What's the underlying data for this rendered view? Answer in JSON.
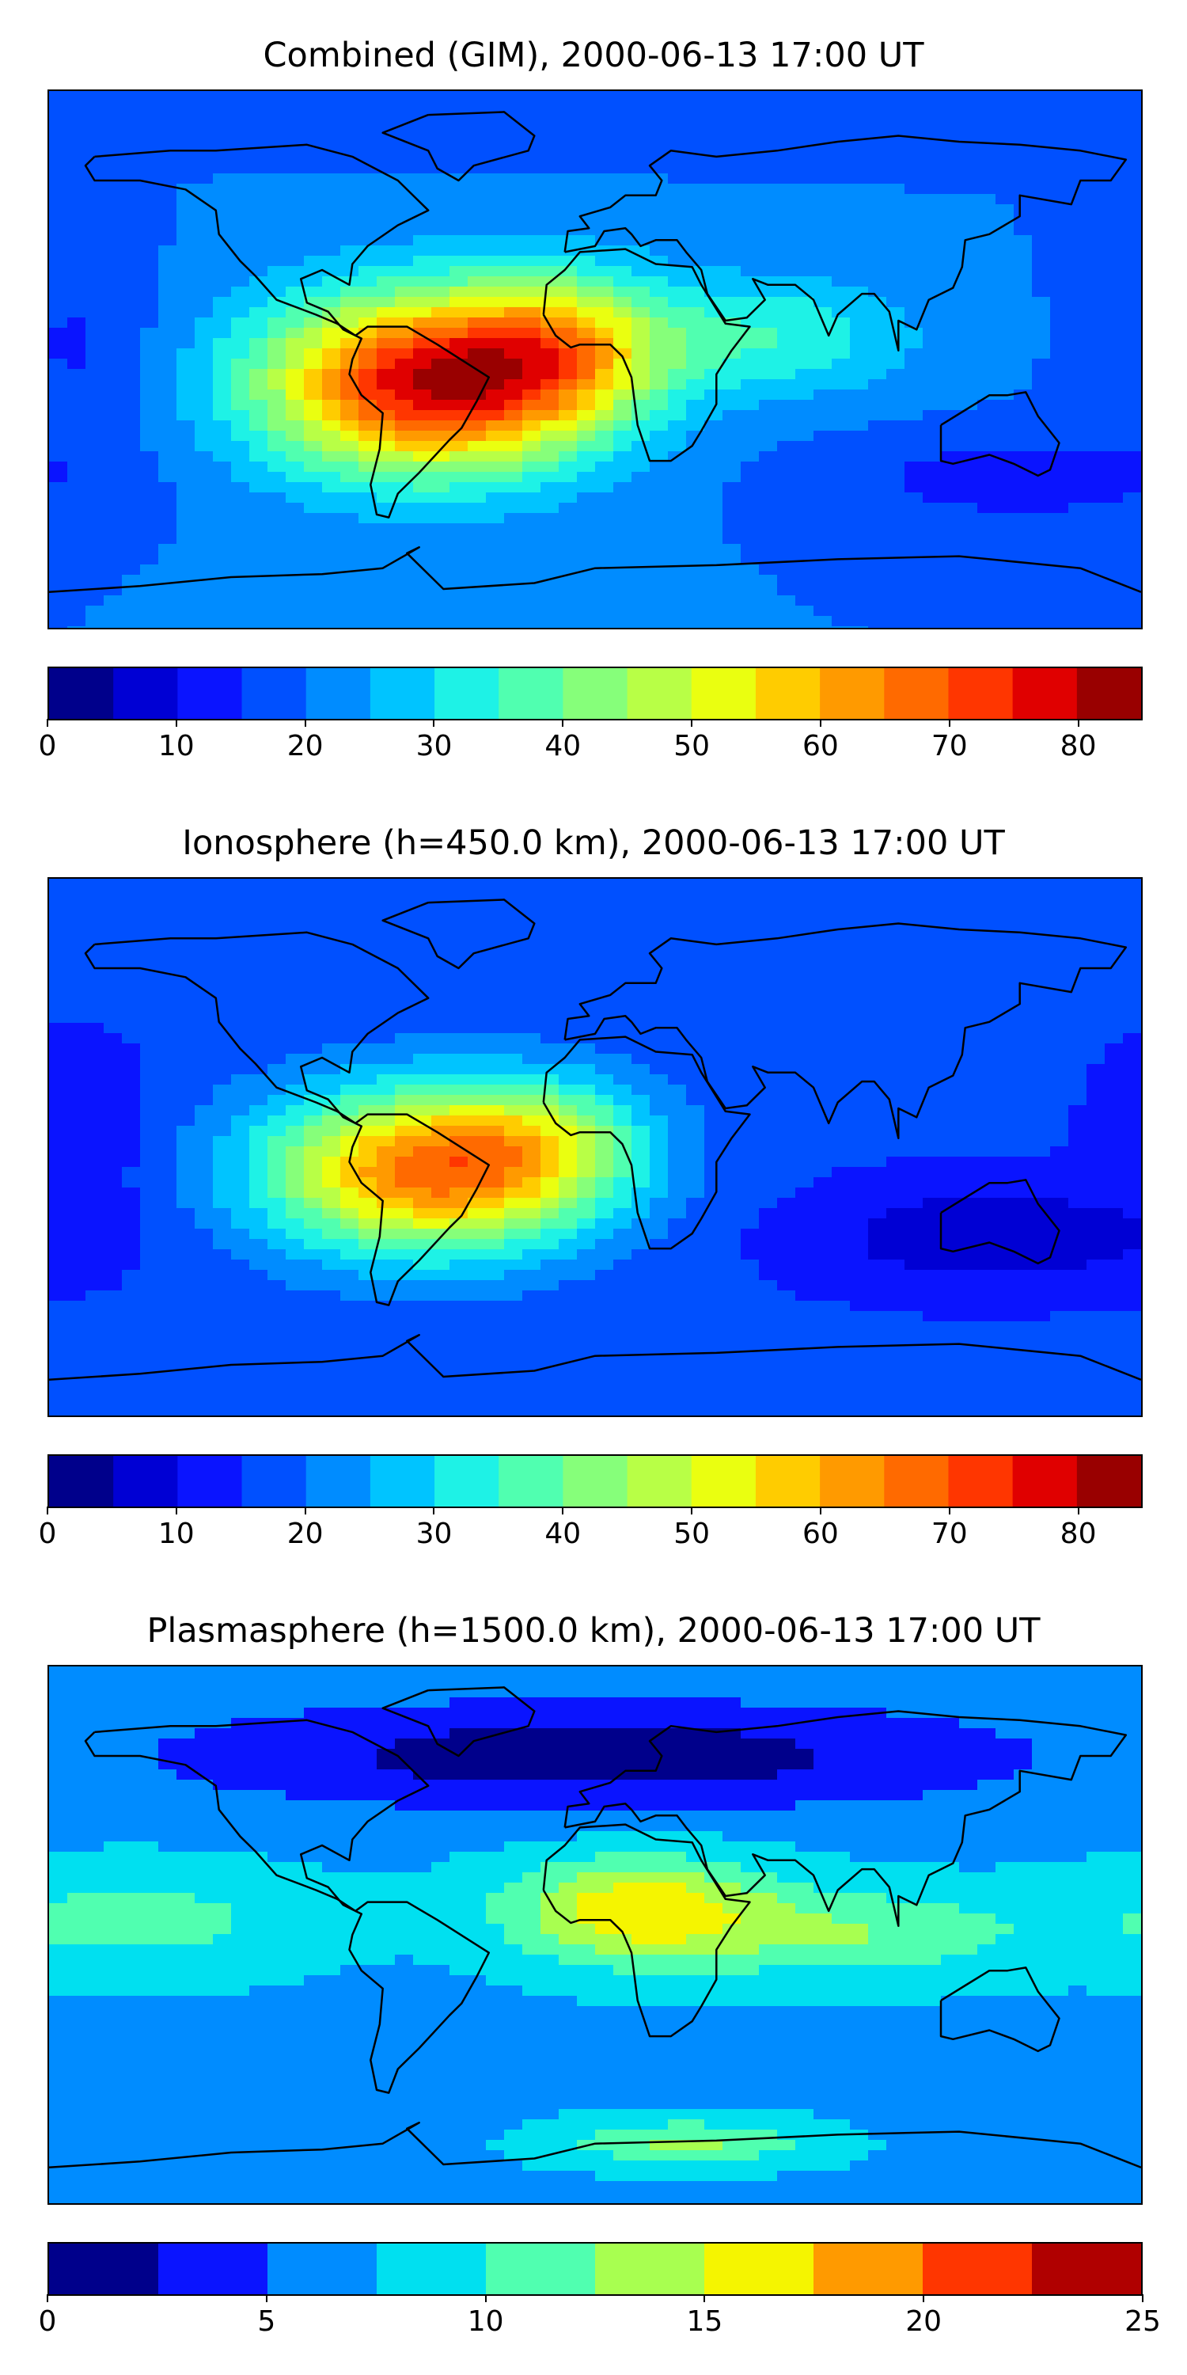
{
  "chart_data": [
    {
      "type": "heatmap",
      "title": "Combined (GIM), 2000-06-13 17:00 UT",
      "colorbar": {
        "levels": [
          0,
          5,
          10,
          15,
          20,
          25,
          30,
          35,
          40,
          45,
          50,
          55,
          60,
          65,
          70,
          75,
          80,
          85
        ],
        "ticks": [
          0,
          10,
          20,
          30,
          40,
          50,
          60,
          70,
          80
        ],
        "colors": [
          "#00008b",
          "#0000d4",
          "#0a14ff",
          "#0050ff",
          "#008cff",
          "#00c4ff",
          "#1ef2e6",
          "#50ffb0",
          "#86ff7a",
          "#b8ff46",
          "#eaff10",
          "#ffcc00",
          "#ff9a00",
          "#ff6a00",
          "#ff3600",
          "#e00000",
          "#990000"
        ]
      },
      "background_level": 20,
      "features": [
        {
          "lon": -55,
          "lat": -8,
          "sx": 55,
          "sy": 30,
          "amp": 58
        },
        {
          "lon": -10,
          "lat": 5,
          "sx": 35,
          "sy": 25,
          "amp": 25
        },
        {
          "lon": 60,
          "lat": 8,
          "sx": 45,
          "sy": 20,
          "amp": 14
        },
        {
          "lon": -170,
          "lat": 5,
          "sx": 25,
          "sy": 30,
          "amp": -6
        },
        {
          "lon": 140,
          "lat": -40,
          "sx": 60,
          "sy": 15,
          "amp": -8
        },
        {
          "lon": 0,
          "lat": 80,
          "sx": 120,
          "sy": 10,
          "amp": -5
        }
      ]
    },
    {
      "type": "heatmap",
      "title": "Ionosphere  (h=450.0 km), 2000-06-13 17:00 UT",
      "colorbar": {
        "levels": [
          0,
          5,
          10,
          15,
          20,
          25,
          30,
          35,
          40,
          45,
          50,
          55,
          60,
          65,
          70,
          75,
          80,
          85
        ],
        "ticks": [
          0,
          10,
          20,
          30,
          40,
          50,
          60,
          70,
          80
        ],
        "colors": [
          "#00008b",
          "#0000d4",
          "#0a14ff",
          "#0050ff",
          "#008cff",
          "#00c4ff",
          "#1ef2e6",
          "#50ffb0",
          "#86ff7a",
          "#b8ff46",
          "#eaff10",
          "#ffcc00",
          "#ff9a00",
          "#ff6a00",
          "#ff3600",
          "#e00000",
          "#990000"
        ]
      },
      "background_level": 16,
      "features": [
        {
          "lon": -55,
          "lat": -8,
          "sx": 55,
          "sy": 28,
          "amp": 50
        },
        {
          "lon": -15,
          "lat": 3,
          "sx": 35,
          "sy": 22,
          "amp": 15
        },
        {
          "lon": 130,
          "lat": -30,
          "sx": 60,
          "sy": 18,
          "amp": -10
        },
        {
          "lon": -170,
          "lat": 5,
          "sx": 25,
          "sy": 30,
          "amp": -5
        }
      ]
    },
    {
      "type": "heatmap",
      "title": "Plasmasphere (h=1500.0 km), 2000-06-13 17:00 UT",
      "colorbar": {
        "levels": [
          0,
          2.5,
          5,
          7.5,
          10,
          12.5,
          15,
          17.5,
          20,
          22.5,
          25
        ],
        "ticks": [
          0,
          5,
          10,
          15,
          20,
          25
        ],
        "colors": [
          "#00008b",
          "#0a14ff",
          "#008cff",
          "#00e0f0",
          "#50ffb0",
          "#a8ff50",
          "#f5f500",
          "#ff9a00",
          "#ff3600",
          "#b00000"
        ]
      },
      "background_level": 7,
      "features": [
        {
          "lon": 15,
          "lat": 8,
          "sx": 45,
          "sy": 18,
          "amp": 10
        },
        {
          "lon": 90,
          "lat": 0,
          "sx": 50,
          "sy": 15,
          "amp": 5
        },
        {
          "lon": -150,
          "lat": 5,
          "sx": 60,
          "sy": 18,
          "amp": 4
        },
        {
          "lon": 0,
          "lat": 60,
          "sx": 140,
          "sy": 18,
          "amp": -6
        },
        {
          "lon": 30,
          "lat": -70,
          "sx": 40,
          "sy": 8,
          "amp": 6
        }
      ]
    }
  ]
}
